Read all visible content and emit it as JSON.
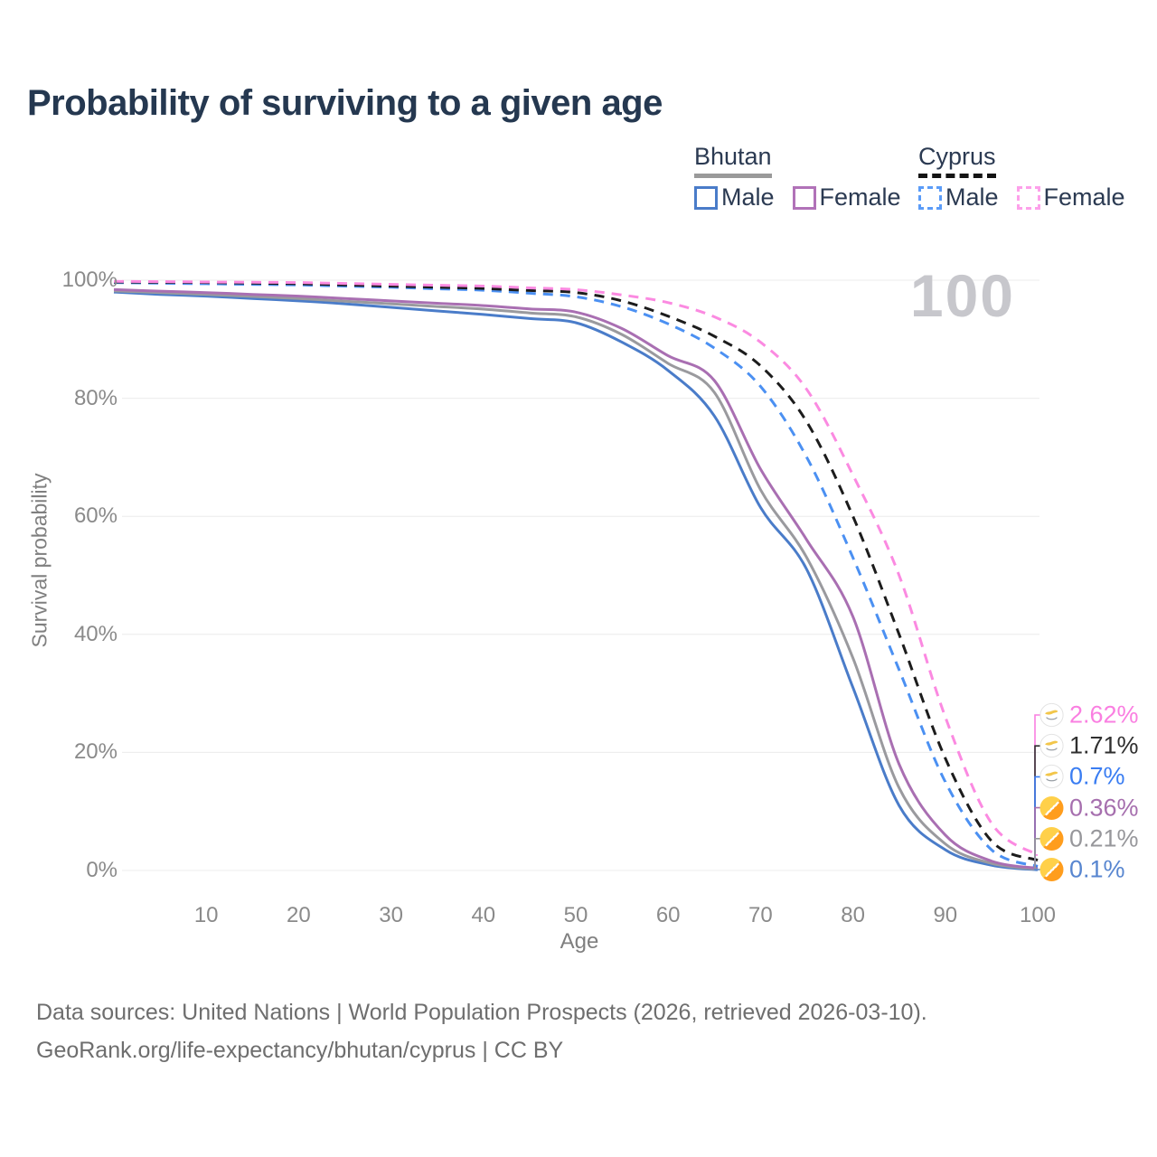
{
  "title": "Probability of surviving to a given age",
  "legend": {
    "groups": [
      {
        "name": "Bhutan",
        "underline": {
          "style": "solid",
          "color": "#9a9a9a"
        },
        "items": [
          {
            "label": "Male",
            "color": "#4a7cc9",
            "dash": false
          },
          {
            "label": "Female",
            "color": "#b172b8",
            "dash": false
          }
        ]
      },
      {
        "name": "Cyprus",
        "underline": {
          "style": "dashed",
          "color": "#141414"
        },
        "items": [
          {
            "label": "Male",
            "color": "#5b9cf8",
            "dash": true
          },
          {
            "label": "Female",
            "color": "#fda0ea",
            "dash": true
          }
        ]
      }
    ]
  },
  "chart_data": {
    "type": "line",
    "title": "Probability of surviving to a given age",
    "xlabel": "Age",
    "ylabel": "Survival probability",
    "xlim": [
      0,
      100
    ],
    "ylim": [
      0,
      100
    ],
    "x_ticks": [
      10,
      20,
      30,
      40,
      50,
      60,
      70,
      80,
      90,
      100
    ],
    "y_ticks": [
      {
        "value": 0,
        "label": "0%"
      },
      {
        "value": 20,
        "label": "20%"
      },
      {
        "value": 40,
        "label": "40%"
      },
      {
        "value": 60,
        "label": "60%"
      },
      {
        "value": 80,
        "label": "80%"
      },
      {
        "value": 100,
        "label": "100%"
      }
    ],
    "grid": true,
    "legend_position": "top-right",
    "annotation": "100",
    "series": [
      {
        "name": "Bhutan Male",
        "country": "Bhutan",
        "sex": "male",
        "color": "#4a7cc9",
        "dash": false,
        "flag": "bhutan",
        "end_label": {
          "text": "0.1%",
          "value": 0.1,
          "color": "#5886d0"
        },
        "points": [
          [
            0,
            98.0
          ],
          [
            5,
            97.6
          ],
          [
            10,
            97.3
          ],
          [
            15,
            96.9
          ],
          [
            20,
            96.5
          ],
          [
            25,
            96.0
          ],
          [
            30,
            95.4
          ],
          [
            35,
            94.8
          ],
          [
            40,
            94.2
          ],
          [
            45,
            93.5
          ],
          [
            50,
            92.8
          ],
          [
            55,
            89.5
          ],
          [
            60,
            84.7
          ],
          [
            65,
            77
          ],
          [
            70,
            61.5
          ],
          [
            75,
            51
          ],
          [
            80,
            31
          ],
          [
            85,
            11
          ],
          [
            90,
            3.5
          ],
          [
            95,
            0.9
          ],
          [
            100,
            0.1
          ]
        ]
      },
      {
        "name": "Bhutan",
        "country": "Bhutan",
        "sex": "both",
        "color": "#9a9a9e",
        "dash": false,
        "flag": "bhutan",
        "end_label": {
          "text": "0.21%",
          "value": 0.21,
          "color": "#97979b"
        },
        "points": [
          [
            0,
            98.2
          ],
          [
            5,
            97.9
          ],
          [
            10,
            97.6
          ],
          [
            15,
            97.25
          ],
          [
            20,
            96.9
          ],
          [
            25,
            96.45
          ],
          [
            30,
            96.0
          ],
          [
            35,
            95.55
          ],
          [
            40,
            95.1
          ],
          [
            45,
            94.45
          ],
          [
            50,
            93.8
          ],
          [
            55,
            90.8
          ],
          [
            60,
            85.9
          ],
          [
            65,
            81
          ],
          [
            70,
            64.5
          ],
          [
            75,
            53
          ],
          [
            80,
            36
          ],
          [
            85,
            14
          ],
          [
            90,
            4.5
          ],
          [
            95,
            1.2
          ],
          [
            100,
            0.21
          ]
        ]
      },
      {
        "name": "Bhutan Female",
        "country": "Bhutan",
        "sex": "female",
        "color": "#a96fb2",
        "dash": false,
        "flag": "bhutan",
        "end_label": {
          "text": "0.36%",
          "value": 0.36,
          "color": "#a66fae"
        },
        "points": [
          [
            0,
            98.4
          ],
          [
            5,
            98.15
          ],
          [
            10,
            97.9
          ],
          [
            15,
            97.6
          ],
          [
            20,
            97.3
          ],
          [
            25,
            96.9
          ],
          [
            30,
            96.5
          ],
          [
            35,
            96.1
          ],
          [
            40,
            95.7
          ],
          [
            45,
            95.15
          ],
          [
            50,
            94.6
          ],
          [
            55,
            91.8
          ],
          [
            60,
            87.2
          ],
          [
            65,
            83
          ],
          [
            70,
            68
          ],
          [
            75,
            56
          ],
          [
            80,
            43
          ],
          [
            85,
            18
          ],
          [
            90,
            6
          ],
          [
            95,
            1.6
          ],
          [
            100,
            0.36
          ]
        ]
      },
      {
        "name": "Cyprus Male",
        "country": "Cyprus",
        "sex": "male",
        "color": "#4b90f2",
        "dash": true,
        "flag": "cyprus",
        "end_label": {
          "text": "0.7%",
          "value": 0.7,
          "color": "#3a7df2"
        },
        "points": [
          [
            0,
            99.6
          ],
          [
            5,
            99.5
          ],
          [
            10,
            99.4
          ],
          [
            15,
            99.3
          ],
          [
            20,
            99.2
          ],
          [
            25,
            99.0
          ],
          [
            30,
            98.8
          ],
          [
            35,
            98.55
          ],
          [
            40,
            98.3
          ],
          [
            45,
            97.8
          ],
          [
            50,
            97.2
          ],
          [
            55,
            95.5
          ],
          [
            60,
            92.6
          ],
          [
            65,
            88.5
          ],
          [
            70,
            82
          ],
          [
            75,
            70
          ],
          [
            80,
            53
          ],
          [
            85,
            34
          ],
          [
            90,
            15
          ],
          [
            95,
            3.5
          ],
          [
            100,
            0.7
          ]
        ]
      },
      {
        "name": "Cyprus",
        "country": "Cyprus",
        "sex": "both",
        "color": "#1c1c1c",
        "dash": true,
        "flag": "cyprus",
        "end_label": {
          "text": "1.71%",
          "value": 1.71,
          "color": "#2f2f2f"
        },
        "points": [
          [
            0,
            99.7
          ],
          [
            5,
            99.65
          ],
          [
            10,
            99.6
          ],
          [
            15,
            99.5
          ],
          [
            20,
            99.4
          ],
          [
            25,
            99.2
          ],
          [
            30,
            99.0
          ],
          [
            35,
            98.8
          ],
          [
            40,
            98.6
          ],
          [
            45,
            98.25
          ],
          [
            50,
            97.9
          ],
          [
            55,
            96.5
          ],
          [
            60,
            93.9
          ],
          [
            65,
            90.5
          ],
          [
            70,
            85.5
          ],
          [
            75,
            76
          ],
          [
            80,
            60
          ],
          [
            85,
            40
          ],
          [
            90,
            19
          ],
          [
            95,
            5
          ],
          [
            100,
            1.71
          ]
        ]
      },
      {
        "name": "Cyprus Female",
        "country": "Cyprus",
        "sex": "female",
        "color": "#fb8ae1",
        "dash": true,
        "flag": "cyprus",
        "end_label": {
          "text": "2.62%",
          "value": 2.62,
          "color": "#fa7fe1"
        },
        "points": [
          [
            0,
            99.8
          ],
          [
            5,
            99.75
          ],
          [
            10,
            99.7
          ],
          [
            15,
            99.65
          ],
          [
            20,
            99.6
          ],
          [
            25,
            99.45
          ],
          [
            30,
            99.3
          ],
          [
            35,
            99.15
          ],
          [
            40,
            99.0
          ],
          [
            45,
            98.7
          ],
          [
            50,
            98.4
          ],
          [
            55,
            97.5
          ],
          [
            60,
            96.2
          ],
          [
            65,
            93.8
          ],
          [
            70,
            89.5
          ],
          [
            75,
            81.5
          ],
          [
            80,
            67
          ],
          [
            85,
            50
          ],
          [
            90,
            26
          ],
          [
            95,
            8
          ],
          [
            100,
            2.62
          ]
        ]
      }
    ]
  },
  "footer": {
    "line1": "Data sources: United Nations | World Population Prospects (2026, retrieved 2026-03-10).",
    "line2": "GeoRank.org/life-expectancy/bhutan/cyprus | CC BY"
  }
}
